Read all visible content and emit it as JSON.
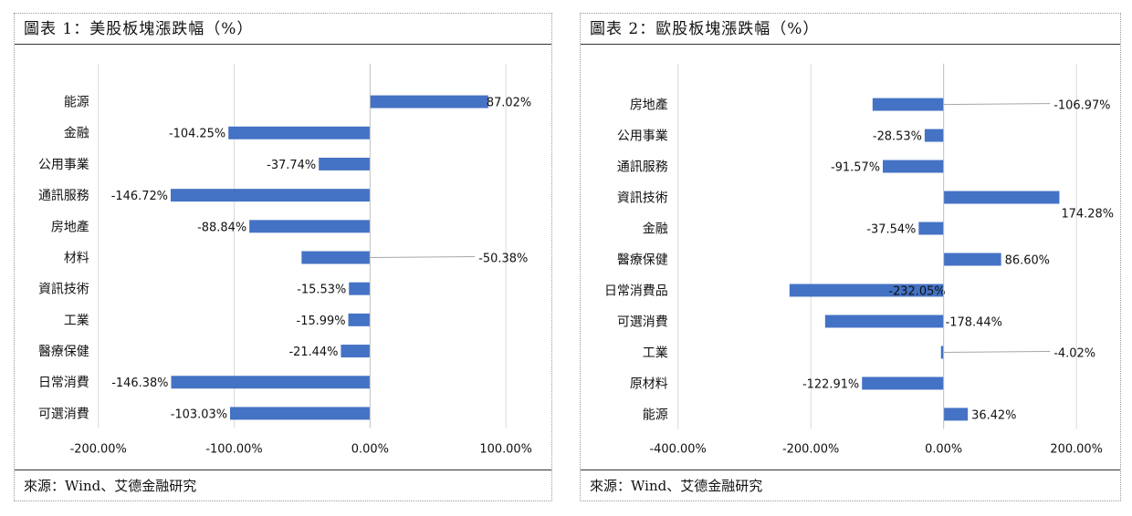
{
  "panels": [
    {
      "title": "圖表 1：美股板塊漲跌幅（%）",
      "source_label": "來源：",
      "source_text": "Wind、艾德金融研究"
    },
    {
      "title": "圖表 2：歐股板塊漲跌幅（%）",
      "source_label": "來源：",
      "source_text": "Wind、艾德金融研究"
    }
  ],
  "colors": {
    "bar": "#4472C4",
    "grid": "#D9D9D9",
    "axis": "#BFBFBF",
    "leader": "#A6A6A6"
  },
  "chart_data": [
    {
      "type": "bar",
      "orientation": "horizontal",
      "title": "圖表 1：美股板塊漲跌幅（%）",
      "categories": [
        "能源",
        "金融",
        "公用事業",
        "通訊服務",
        "房地產",
        "材料",
        "資訊技術",
        "工業",
        "醫療保健",
        "日常消費",
        "可選消費"
      ],
      "values": [
        87.02,
        -104.25,
        -37.74,
        -146.72,
        -88.84,
        -50.38,
        -15.53,
        -15.99,
        -21.44,
        -146.38,
        -103.03
      ],
      "value_labels": [
        "87.02%",
        "-104.25%",
        "-37.74%",
        "-146.72%",
        "-88.84%",
        "-50.38%",
        "-15.53%",
        "-15.99%",
        "-21.44%",
        "-146.38%",
        "-103.03%"
      ],
      "xlim": [
        -200,
        100
      ],
      "xticks": [
        -200,
        -100,
        0,
        100
      ],
      "xtick_labels": [
        "-200.00%",
        "-100.00%",
        "0.00%",
        "100.00%"
      ],
      "grid": true
    },
    {
      "type": "bar",
      "orientation": "horizontal",
      "title": "圖表 2：歐股板塊漲跌幅（%）",
      "categories": [
        "房地產",
        "公用事業",
        "通訊服務",
        "資訊技術",
        "金融",
        "醫療保健",
        "日常消費品",
        "可選消費",
        "工業",
        "原材料",
        "能源"
      ],
      "values": [
        -106.97,
        -28.53,
        -91.57,
        174.28,
        -37.54,
        86.6,
        -232.05,
        -178.44,
        -4.02,
        -122.91,
        36.42
      ],
      "value_labels": [
        "-106.97%",
        "-28.53%",
        "-91.57%",
        "174.28%",
        "-37.54%",
        "86.60%",
        "-232.05%",
        "-178.44%",
        "-4.02%",
        "-122.91%",
        "36.42%"
      ],
      "xlim": [
        -400,
        200
      ],
      "xticks": [
        -400,
        -200,
        0,
        200
      ],
      "xtick_labels": [
        "-400.00%",
        "-200.00%",
        "0.00%",
        "200.00%"
      ],
      "grid": true
    }
  ]
}
